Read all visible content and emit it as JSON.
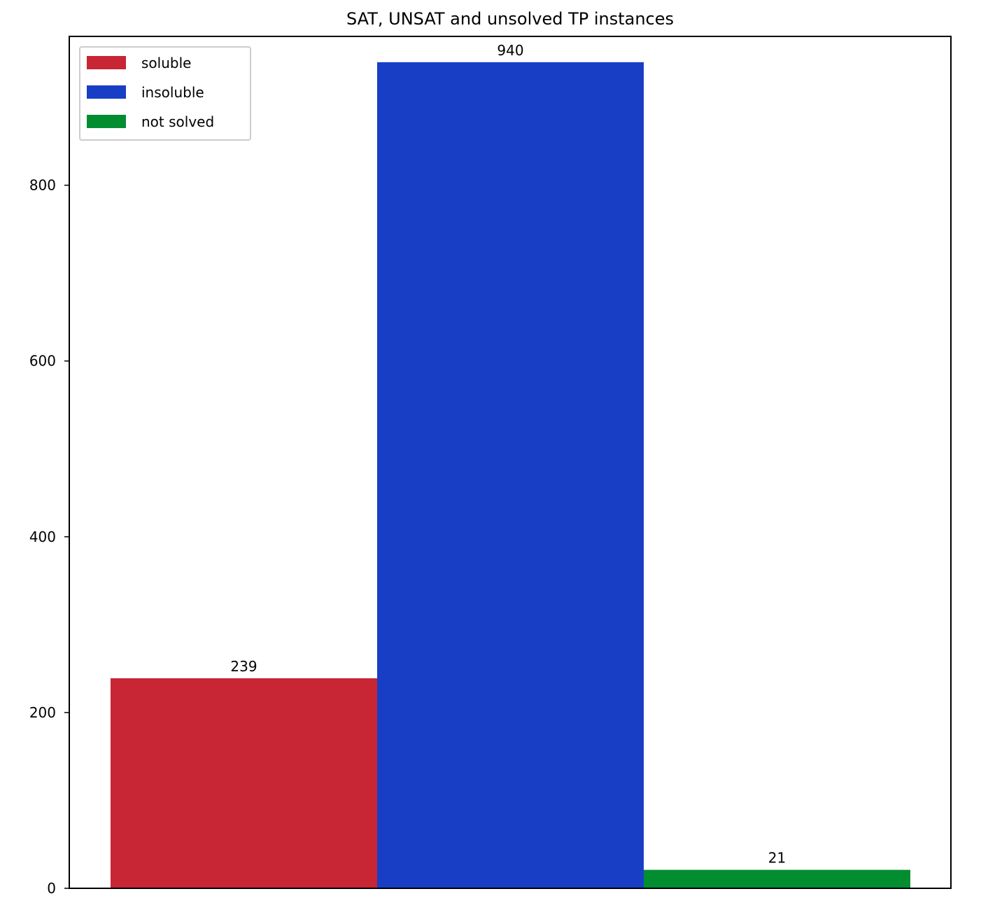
{
  "chart_data": {
    "type": "bar",
    "title": "SAT, UNSAT and unsolved TP instances",
    "xlabel": "",
    "ylabel": "",
    "ylim": [
      0,
      970
    ],
    "yticks": [
      0,
      200,
      400,
      600,
      800
    ],
    "grid": false,
    "legend_position": "top-left",
    "series": [
      {
        "name": "soluble",
        "value": 239,
        "label": "239",
        "color": "#c82535"
      },
      {
        "name": "insoluble",
        "value": 940,
        "label": "940",
        "color": "#183ec6"
      },
      {
        "name": "not solved",
        "value": 21,
        "label": "21",
        "color": "#028d31"
      }
    ]
  }
}
